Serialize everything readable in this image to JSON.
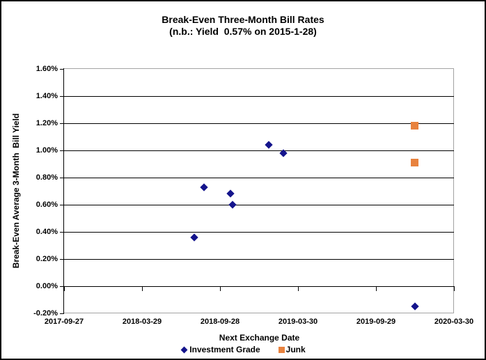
{
  "window": {
    "background": "#FFFFFF",
    "border_color": "#000000"
  },
  "chart_data": {
    "type": "scatter",
    "title": "Break-Even Three-Month Bill Rates",
    "subtitle": "(n.b.: Yield  0.57% on 2015-1-28)",
    "xlabel": "Next Exchange Date",
    "ylabel": "Break-Even Average 3-Month  Bill Yield",
    "xlim": [
      "2017-09-27",
      "2020-03-30"
    ],
    "ylim": [
      -0.2,
      1.6
    ],
    "grid": true,
    "legend_position": "bottom",
    "x_ticks": [
      {
        "value": "2017-09-27",
        "label": "2017-09-27"
      },
      {
        "value": "2018-03-29",
        "label": "2018-03-29"
      },
      {
        "value": "2018-09-28",
        "label": "2018-09-28"
      },
      {
        "value": "2019-03-30",
        "label": "2019-03-30"
      },
      {
        "value": "2019-09-29",
        "label": "2019-09-29"
      },
      {
        "value": "2020-03-30",
        "label": "2020-03-30"
      }
    ],
    "y_ticks": [
      {
        "value": 1.6,
        "label": "1.60%"
      },
      {
        "value": 1.4,
        "label": "1.40%"
      },
      {
        "value": 1.2,
        "label": "1.20%"
      },
      {
        "value": 1.0,
        "label": "1.00%"
      },
      {
        "value": 0.8,
        "label": "0.80%"
      },
      {
        "value": 0.6,
        "label": "0.60%"
      },
      {
        "value": 0.4,
        "label": "0.40%"
      },
      {
        "value": 0.2,
        "label": "0.20%"
      },
      {
        "value": 0.0,
        "label": "0.00%"
      },
      {
        "value": -0.2,
        "label": "-0.20%"
      }
    ],
    "series": [
      {
        "name": "Investment Grade",
        "marker": "diamond",
        "color": "#14148C",
        "points": [
          {
            "x": "2018-07-29",
            "y": 0.36
          },
          {
            "x": "2018-08-21",
            "y": 0.73
          },
          {
            "x": "2018-10-23",
            "y": 0.68
          },
          {
            "x": "2018-10-28",
            "y": 0.6
          },
          {
            "x": "2019-01-20",
            "y": 1.04
          },
          {
            "x": "2019-02-23",
            "y": 0.98
          },
          {
            "x": "2019-12-30",
            "y": -0.15
          }
        ]
      },
      {
        "name": "Junk",
        "marker": "square",
        "color": "#E8823E",
        "points": [
          {
            "x": "2019-12-30",
            "y": 1.18
          },
          {
            "x": "2019-12-30",
            "y": 0.91
          }
        ]
      }
    ],
    "axis_colors": {
      "gridline": "#000000",
      "plot_border": "#A3A3A3",
      "axis_line": "#000000",
      "text": "#000000"
    }
  }
}
